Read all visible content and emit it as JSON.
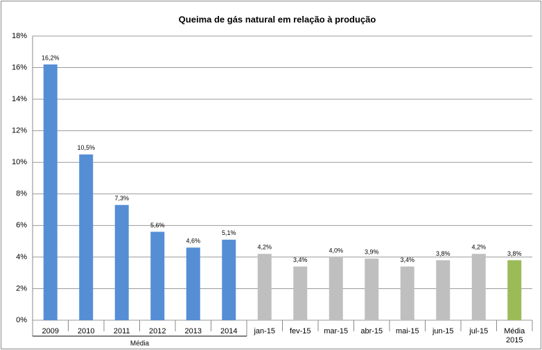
{
  "chart_data": {
    "type": "bar",
    "title": "Queima de gás natural  em relação à produção",
    "categories": [
      "2009",
      "2010",
      "2011",
      "2012",
      "2013",
      "2014",
      "jan-15",
      "fev-15",
      "mar-15",
      "abr-15",
      "mai-15",
      "jun-15",
      "jul-15",
      "Média 2015"
    ],
    "values": [
      16.2,
      10.5,
      7.3,
      5.6,
      4.6,
      5.1,
      4.2,
      3.4,
      4.0,
      3.9,
      3.4,
      3.8,
      4.2,
      3.8
    ],
    "value_labels": [
      "16,2%",
      "10,5%",
      "7,3%",
      "5,6%",
      "4,6%",
      "5,1%",
      "4,2%",
      "3,4%",
      "4,0%",
      "3,9%",
      "3,4%",
      "3,8%",
      "4,2%",
      "3,8%"
    ],
    "colors": [
      "#558ed5",
      "#558ed5",
      "#558ed5",
      "#558ed5",
      "#558ed5",
      "#558ed5",
      "#bfbfbf",
      "#bfbfbf",
      "#bfbfbf",
      "#bfbfbf",
      "#bfbfbf",
      "#bfbfbf",
      "#bfbfbf",
      "#9bbb59"
    ],
    "x_group_label": "Média",
    "ylim": [
      0,
      18
    ],
    "yticks": [
      {
        "value": 0,
        "label": "0%"
      },
      {
        "value": 2,
        "label": "2%"
      },
      {
        "value": 4,
        "label": "4%"
      },
      {
        "value": 6,
        "label": "6%"
      },
      {
        "value": 8,
        "label": "8%"
      },
      {
        "value": 10,
        "label": "10%"
      },
      {
        "value": 12,
        "label": "12%"
      },
      {
        "value": 14,
        "label": "14%"
      },
      {
        "value": 16,
        "label": "16%"
      },
      {
        "value": 18,
        "label": "18%"
      }
    ],
    "grid": true
  }
}
